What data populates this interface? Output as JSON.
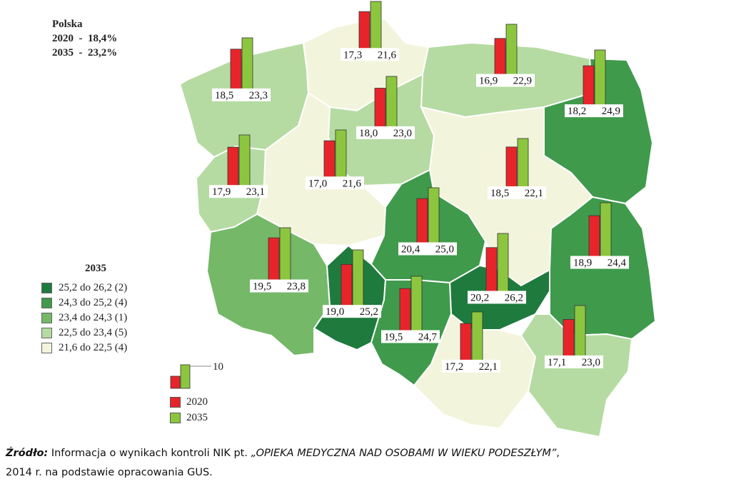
{
  "summary": {
    "title": "Polska",
    "line_2020": "2020  -  18,4%",
    "line_2035": "2035  -  23,2%"
  },
  "legend": {
    "title": "2035",
    "classes": [
      {
        "label": "25,2 do 26,2  (2)",
        "color": "#1f7a3e"
      },
      {
        "label": "24,3 do 25,2  (4)",
        "color": "#3f9a4c"
      },
      {
        "label": "23,4 do 24,3  (1)",
        "color": "#74b868"
      },
      {
        "label": "22,5 do 23,4  (5)",
        "color": "#b5dba2"
      },
      {
        "label": "21,6 do 22,5  (4)",
        "color": "#f3f4dc"
      }
    ]
  },
  "bar_legend": {
    "scale_label": "10",
    "label_2020": "2020",
    "label_2035": "2035",
    "color_2020": "#e8242b",
    "color_2035": "#8cc63f"
  },
  "map": {
    "border_color": "#ffffff",
    "regions": [
      {
        "v2020": "18,5",
        "v2035": "23,3",
        "class": 3
      },
      {
        "v2020": "17,3",
        "v2035": "21,6",
        "class": 4
      },
      {
        "v2020": "16,9",
        "v2035": "22,9",
        "class": 3
      },
      {
        "v2020": "18,2",
        "v2035": "24,9",
        "class": 1
      },
      {
        "v2020": "18,0",
        "v2035": "23,0",
        "class": 3
      },
      {
        "v2020": "17,9",
        "v2035": "23,1",
        "class": 3
      },
      {
        "v2020": "17,0",
        "v2035": "21,6",
        "class": 4
      },
      {
        "v2020": "18,5",
        "v2035": "22,1",
        "class": 4
      },
      {
        "v2020": "20,4",
        "v2035": "25,0",
        "class": 1
      },
      {
        "v2020": "18,9",
        "v2035": "24,4",
        "class": 1
      },
      {
        "v2020": "19,5",
        "v2035": "23,8",
        "class": 2
      },
      {
        "v2020": "20,2",
        "v2035": "26,2",
        "class": 0
      },
      {
        "v2020": "19,0",
        "v2035": "25,2",
        "class": 0
      },
      {
        "v2020": "19,5",
        "v2035": "24,7",
        "class": 1
      },
      {
        "v2020": "17,2",
        "v2035": "22,1",
        "class": 4
      },
      {
        "v2020": "17,1",
        "v2035": "23,0",
        "class": 3
      }
    ]
  },
  "source": {
    "label": "Źródło:",
    "text_before": " Informacja o wynikach kontroli NIK pt. ",
    "title": "„OPIEKA MEDYCZNA NAD OSOBAMI W WIEKU PODESZŁYM”",
    "text_after": ",",
    "line2": "2014 r. na podstawie opracowania GUS."
  }
}
